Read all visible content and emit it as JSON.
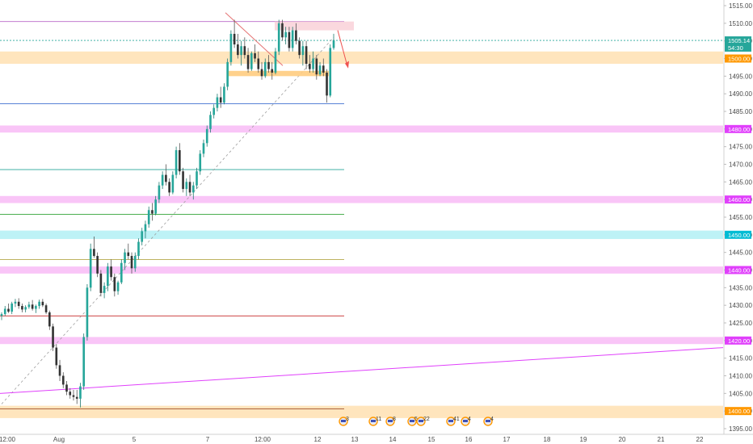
{
  "chart_data": {
    "type": "candlestick",
    "title": "",
    "xlabel": "",
    "ylabel": "",
    "ylim": [
      1393,
      1517
    ],
    "grid": false,
    "y_ticks": [
      "1395.00",
      "1400.00",
      "1405.00",
      "1410.00",
      "1415.00",
      "1420.00",
      "1425.00",
      "1430.00",
      "1435.00",
      "1440.00",
      "1445.00",
      "1450.00",
      "1455.00",
      "1460.00",
      "1465.00",
      "1470.00",
      "1475.00",
      "1480.00",
      "1485.00",
      "1490.00",
      "1495.00",
      "1500.00",
      "1505.00",
      "1510.00",
      "1515.00"
    ],
    "x_ticks": [
      "12:00",
      "Aug",
      "5",
      "7",
      "12:00",
      "12",
      "13",
      "14",
      "15",
      "16",
      "17",
      "18",
      "19",
      "20",
      "21",
      "22"
    ],
    "price_badges": [
      {
        "label": "1505.14",
        "value": 1505.14,
        "color": "#26a69a"
      },
      {
        "label": "54:30",
        "value": 1503.1,
        "color": "#26a69a"
      },
      {
        "label": "1500.00",
        "value": 1500.0,
        "color": "#ff9800"
      },
      {
        "label": "1480.00",
        "value": 1480.0,
        "color": "#e040fb"
      },
      {
        "label": "1460.00",
        "value": 1460.0,
        "color": "#e040fb"
      },
      {
        "label": "1450.00",
        "value": 1450.0,
        "color": "#00bcd4"
      },
      {
        "label": "1440.00",
        "value": 1440.0,
        "color": "#e040fb"
      },
      {
        "label": "1420.00",
        "value": 1420.0,
        "color": "#e040fb"
      },
      {
        "label": "1400.00",
        "value": 1400.0,
        "color": "#ff9800"
      }
    ],
    "zones": [
      {
        "from": 1498.5,
        "to": 1502.0,
        "color": "#ffe0b2"
      },
      {
        "from": 1479.0,
        "to": 1481.0,
        "color": "#f8bbf6"
      },
      {
        "from": 1459.0,
        "to": 1461.0,
        "color": "#f8bbf6"
      },
      {
        "from": 1448.8,
        "to": 1451.2,
        "color": "#b2f0f5"
      },
      {
        "from": 1439.0,
        "to": 1441.0,
        "color": "#f8bbf6"
      },
      {
        "from": 1419.0,
        "to": 1421.0,
        "color": "#f8bbf6"
      },
      {
        "from": 1398.0,
        "to": 1401.5,
        "color": "#ffe0b2"
      }
    ],
    "hlines": [
      {
        "value": 1510.5,
        "color": "#ba68c8",
        "dashed": false
      },
      {
        "value": 1505.14,
        "color": "#26a69a",
        "dashed": true
      },
      {
        "value": 1487.2,
        "color": "#3f6fd1",
        "dashed": false
      },
      {
        "value": 1468.5,
        "color": "#26a69a",
        "dashed": false
      },
      {
        "value": 1455.8,
        "color": "#4caf50",
        "dashed": false
      },
      {
        "value": 1443.0,
        "color": "#b5a84a",
        "dashed": false
      },
      {
        "value": 1427.0,
        "color": "#c62828",
        "dashed": false
      },
      {
        "value": 1400.6,
        "color": "#a0522d",
        "dashed": false
      }
    ],
    "events": [
      {
        "label": "3"
      },
      {
        "label": "11"
      },
      {
        "label": "8"
      },
      {
        "label": "5"
      },
      {
        "label": "22"
      },
      {
        "label": "41"
      },
      {
        "label": "4"
      },
      {
        "label": "4"
      }
    ],
    "candles": [
      [
        1427,
        1428,
        1425.8,
        1427.5
      ],
      [
        1427.5,
        1429.8,
        1427,
        1429
      ],
      [
        1429,
        1430.5,
        1427.8,
        1428.2
      ],
      [
        1428.2,
        1431,
        1427.5,
        1430.5
      ],
      [
        1430.5,
        1431.8,
        1429.5,
        1431
      ],
      [
        1431,
        1432,
        1429,
        1429.8
      ],
      [
        1429.8,
        1430.5,
        1428,
        1428.8
      ],
      [
        1428.8,
        1430,
        1428,
        1429.5
      ],
      [
        1429.5,
        1431,
        1429,
        1430.2
      ],
      [
        1430.2,
        1431.5,
        1428.5,
        1429
      ],
      [
        1429,
        1430.2,
        1427.8,
        1429.8
      ],
      [
        1429.8,
        1431.6,
        1429,
        1431
      ],
      [
        1431,
        1431.8,
        1429.5,
        1430
      ],
      [
        1430,
        1430.5,
        1427.5,
        1428
      ],
      [
        1428,
        1428.5,
        1423,
        1424
      ],
      [
        1424,
        1424.8,
        1417,
        1418
      ],
      [
        1418,
        1419,
        1412,
        1413
      ],
      [
        1413,
        1414.5,
        1408.5,
        1410
      ],
      [
        1410,
        1411,
        1406.5,
        1407.5
      ],
      [
        1407.5,
        1408.5,
        1404.5,
        1405.5
      ],
      [
        1405.5,
        1406.5,
        1403.5,
        1404.5
      ],
      [
        1404.5,
        1406,
        1403,
        1404
      ],
      [
        1404,
        1406,
        1402,
        1403.5
      ],
      [
        1403.5,
        1408,
        1401,
        1407
      ],
      [
        1407,
        1422,
        1406,
        1421
      ],
      [
        1421,
        1436,
        1420,
        1435
      ],
      [
        1435,
        1447.5,
        1434,
        1446
      ],
      [
        1446,
        1449.5,
        1443.5,
        1444
      ],
      [
        1444,
        1445,
        1438,
        1439
      ],
      [
        1439,
        1440,
        1432.5,
        1433.5
      ],
      [
        1433.5,
        1436.5,
        1432,
        1435.5
      ],
      [
        1435.5,
        1442,
        1434,
        1441
      ],
      [
        1441,
        1443,
        1437,
        1438
      ],
      [
        1438,
        1439,
        1432.5,
        1434
      ],
      [
        1434,
        1437,
        1433,
        1436.5
      ],
      [
        1436.5,
        1443,
        1436,
        1442
      ],
      [
        1442,
        1446,
        1440,
        1445
      ],
      [
        1445,
        1447.5,
        1443,
        1444
      ],
      [
        1444,
        1445,
        1439,
        1440.5
      ],
      [
        1440.5,
        1445,
        1439.5,
        1444
      ],
      [
        1444,
        1449,
        1443,
        1448
      ],
      [
        1448,
        1452,
        1447,
        1451
      ],
      [
        1451,
        1454,
        1449,
        1453
      ],
      [
        1453,
        1458,
        1452,
        1457
      ],
      [
        1457,
        1459,
        1454,
        1456
      ],
      [
        1456,
        1461,
        1455.5,
        1460
      ],
      [
        1460,
        1465,
        1459,
        1464
      ],
      [
        1464,
        1468,
        1463,
        1467
      ],
      [
        1467,
        1470,
        1464,
        1465
      ],
      [
        1465,
        1466,
        1461,
        1462
      ],
      [
        1462,
        1468,
        1461.5,
        1467
      ],
      [
        1467,
        1475,
        1466,
        1474
      ],
      [
        1474,
        1476,
        1467,
        1468
      ],
      [
        1468,
        1469,
        1462,
        1463
      ],
      [
        1463,
        1466,
        1461,
        1465
      ],
      [
        1465,
        1467,
        1461,
        1462
      ],
      [
        1462,
        1465,
        1460,
        1464
      ],
      [
        1464,
        1469,
        1463,
        1468
      ],
      [
        1468,
        1474,
        1467,
        1473
      ],
      [
        1473,
        1477,
        1472,
        1476
      ],
      [
        1476,
        1481,
        1475,
        1480
      ],
      [
        1480,
        1485,
        1479,
        1484
      ],
      [
        1484,
        1487,
        1483,
        1486
      ],
      [
        1486,
        1490,
        1485,
        1489
      ],
      [
        1489,
        1492,
        1486,
        1487.5
      ],
      [
        1487.5,
        1493,
        1487,
        1492
      ],
      [
        1492,
        1500,
        1491,
        1499
      ],
      [
        1499,
        1508,
        1498,
        1507
      ],
      [
        1507,
        1511,
        1503,
        1504
      ],
      [
        1504,
        1507,
        1500,
        1501
      ],
      [
        1501,
        1505,
        1498,
        1503.5
      ],
      [
        1503.5,
        1506,
        1500,
        1501
      ],
      [
        1501,
        1503,
        1496,
        1497
      ],
      [
        1497,
        1502,
        1496.5,
        1501.5
      ],
      [
        1501.5,
        1504,
        1499,
        1500
      ],
      [
        1500,
        1502,
        1496,
        1497
      ],
      [
        1497,
        1499,
        1494,
        1495
      ],
      [
        1495,
        1500,
        1494.5,
        1499
      ],
      [
        1499,
        1501,
        1496,
        1497
      ],
      [
        1497,
        1499,
        1494,
        1496
      ],
      [
        1496,
        1503,
        1495.5,
        1502
      ],
      [
        1502,
        1511,
        1501,
        1510
      ],
      [
        1510,
        1511,
        1505,
        1506
      ],
      [
        1506,
        1509,
        1504,
        1507.5
      ],
      [
        1507.5,
        1509,
        1502,
        1503
      ],
      [
        1503,
        1509,
        1502,
        1508
      ],
      [
        1508,
        1510,
        1504,
        1505
      ],
      [
        1505,
        1506,
        1500,
        1501
      ],
      [
        1501,
        1505,
        1498,
        1503.5
      ],
      [
        1503.5,
        1505,
        1497,
        1498.5
      ],
      [
        1498.5,
        1501,
        1496,
        1497
      ],
      [
        1497,
        1502,
        1496,
        1500
      ],
      [
        1500,
        1501,
        1494,
        1495.5
      ],
      [
        1495.5,
        1499,
        1495,
        1498
      ],
      [
        1498,
        1500,
        1495,
        1496
      ],
      [
        1496,
        1497,
        1487.5,
        1489.5
      ],
      [
        1489.5,
        1504,
        1489,
        1503
      ],
      [
        1503,
        1507,
        1502.5,
        1505.14
      ]
    ]
  }
}
